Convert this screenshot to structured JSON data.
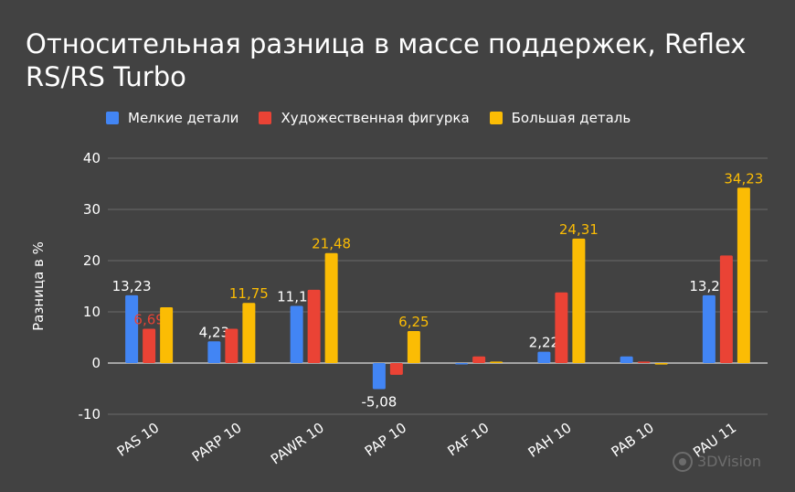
{
  "title": "Относительная разница в массе поддержек, Reflex RS/RS Turbo",
  "watermark": "3DVision",
  "chart_data": {
    "type": "bar",
    "title": "Относительная разница в массе поддержек, Reflex RS/RS Turbo",
    "xlabel": "",
    "ylabel": "Разница в %",
    "ylim": [
      -10,
      40
    ],
    "yticks": [
      -10,
      0,
      10,
      20,
      30,
      40
    ],
    "grid": true,
    "legend_position": "top",
    "categories": [
      "PAS 10",
      "PARP 10",
      "PAWR 10",
      "PAP 10",
      "PAF 10",
      "PAH 10",
      "PAB 10",
      "PAU 11"
    ],
    "series": [
      {
        "name": "Мелкие детали",
        "color": "#4285F4",
        "label_color": "#FFFFFF",
        "values": [
          13.23,
          4.23,
          11.17,
          -5.08,
          0,
          2.22,
          1.3,
          13.23
        ],
        "labels": [
          "13,23",
          "4,23",
          "11,17",
          "-5,08",
          "",
          "2,22",
          "",
          "13,23"
        ]
      },
      {
        "name": "Художественная фигурка",
        "color": "#EA4335",
        "label_color": "#EA4335",
        "values": [
          6.69,
          6.7,
          14.3,
          -2.3,
          1.3,
          13.8,
          0.3,
          21
        ],
        "labels": [
          "6,69",
          "",
          "",
          "",
          "",
          "",
          "",
          ""
        ]
      },
      {
        "name": "Большая деталь",
        "color": "#FBBC04",
        "label_color": "#FBBC04",
        "values": [
          10.9,
          11.75,
          21.48,
          6.25,
          0.3,
          24.31,
          -0.3,
          34.23
        ],
        "labels": [
          "",
          "11,75",
          "21,48",
          "6,25",
          "",
          "24,31",
          "",
          "34,23"
        ]
      }
    ]
  }
}
